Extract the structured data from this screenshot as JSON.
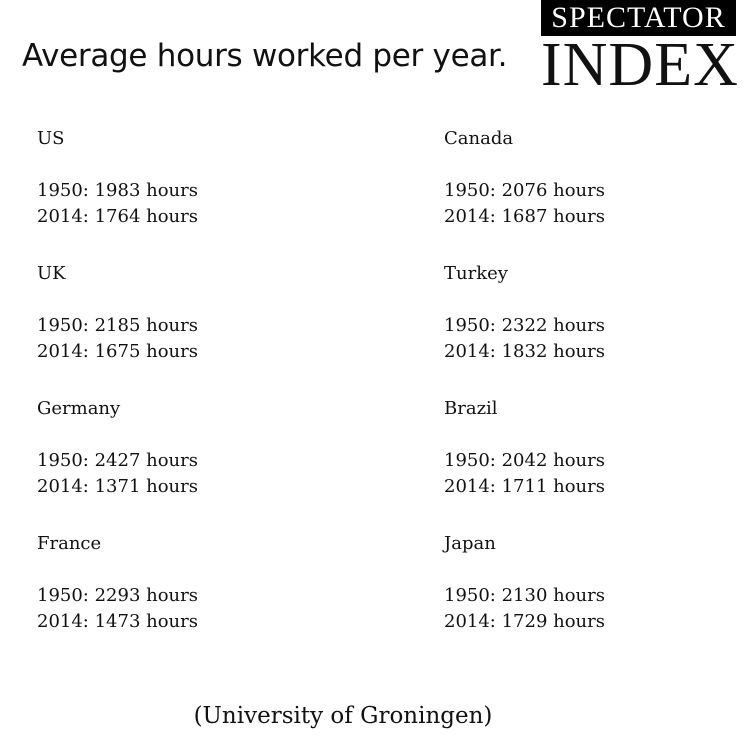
{
  "header": {
    "title": "Average hours worked per year.",
    "logo_top": "SPECTATOR",
    "logo_bottom": "INDEX"
  },
  "entries": [
    {
      "country": "US",
      "lines": [
        "1950: 1983 hours",
        "2014: 1764 hours"
      ]
    },
    {
      "country": "Canada",
      "lines": [
        "1950: 2076 hours",
        "2014: 1687 hours"
      ]
    },
    {
      "country": "UK",
      "lines": [
        "1950: 2185 hours",
        "2014: 1675 hours"
      ]
    },
    {
      "country": "Turkey",
      "lines": [
        "1950: 2322 hours",
        "2014: 1832 hours"
      ]
    },
    {
      "country": "Germany",
      "lines": [
        "1950: 2427 hours",
        "2014: 1371 hours"
      ]
    },
    {
      "country": "Brazil",
      "lines": [
        "1950: 2042 hours",
        "2014: 1711 hours"
      ]
    },
    {
      "country": "France",
      "lines": [
        "1950: 2293 hours",
        "2014: 1473 hours"
      ]
    },
    {
      "country": "Japan",
      "lines": [
        "1950: 2130 hours",
        "2014: 1729 hours"
      ]
    }
  ],
  "footer": {
    "source": "(University of Groningen)"
  }
}
